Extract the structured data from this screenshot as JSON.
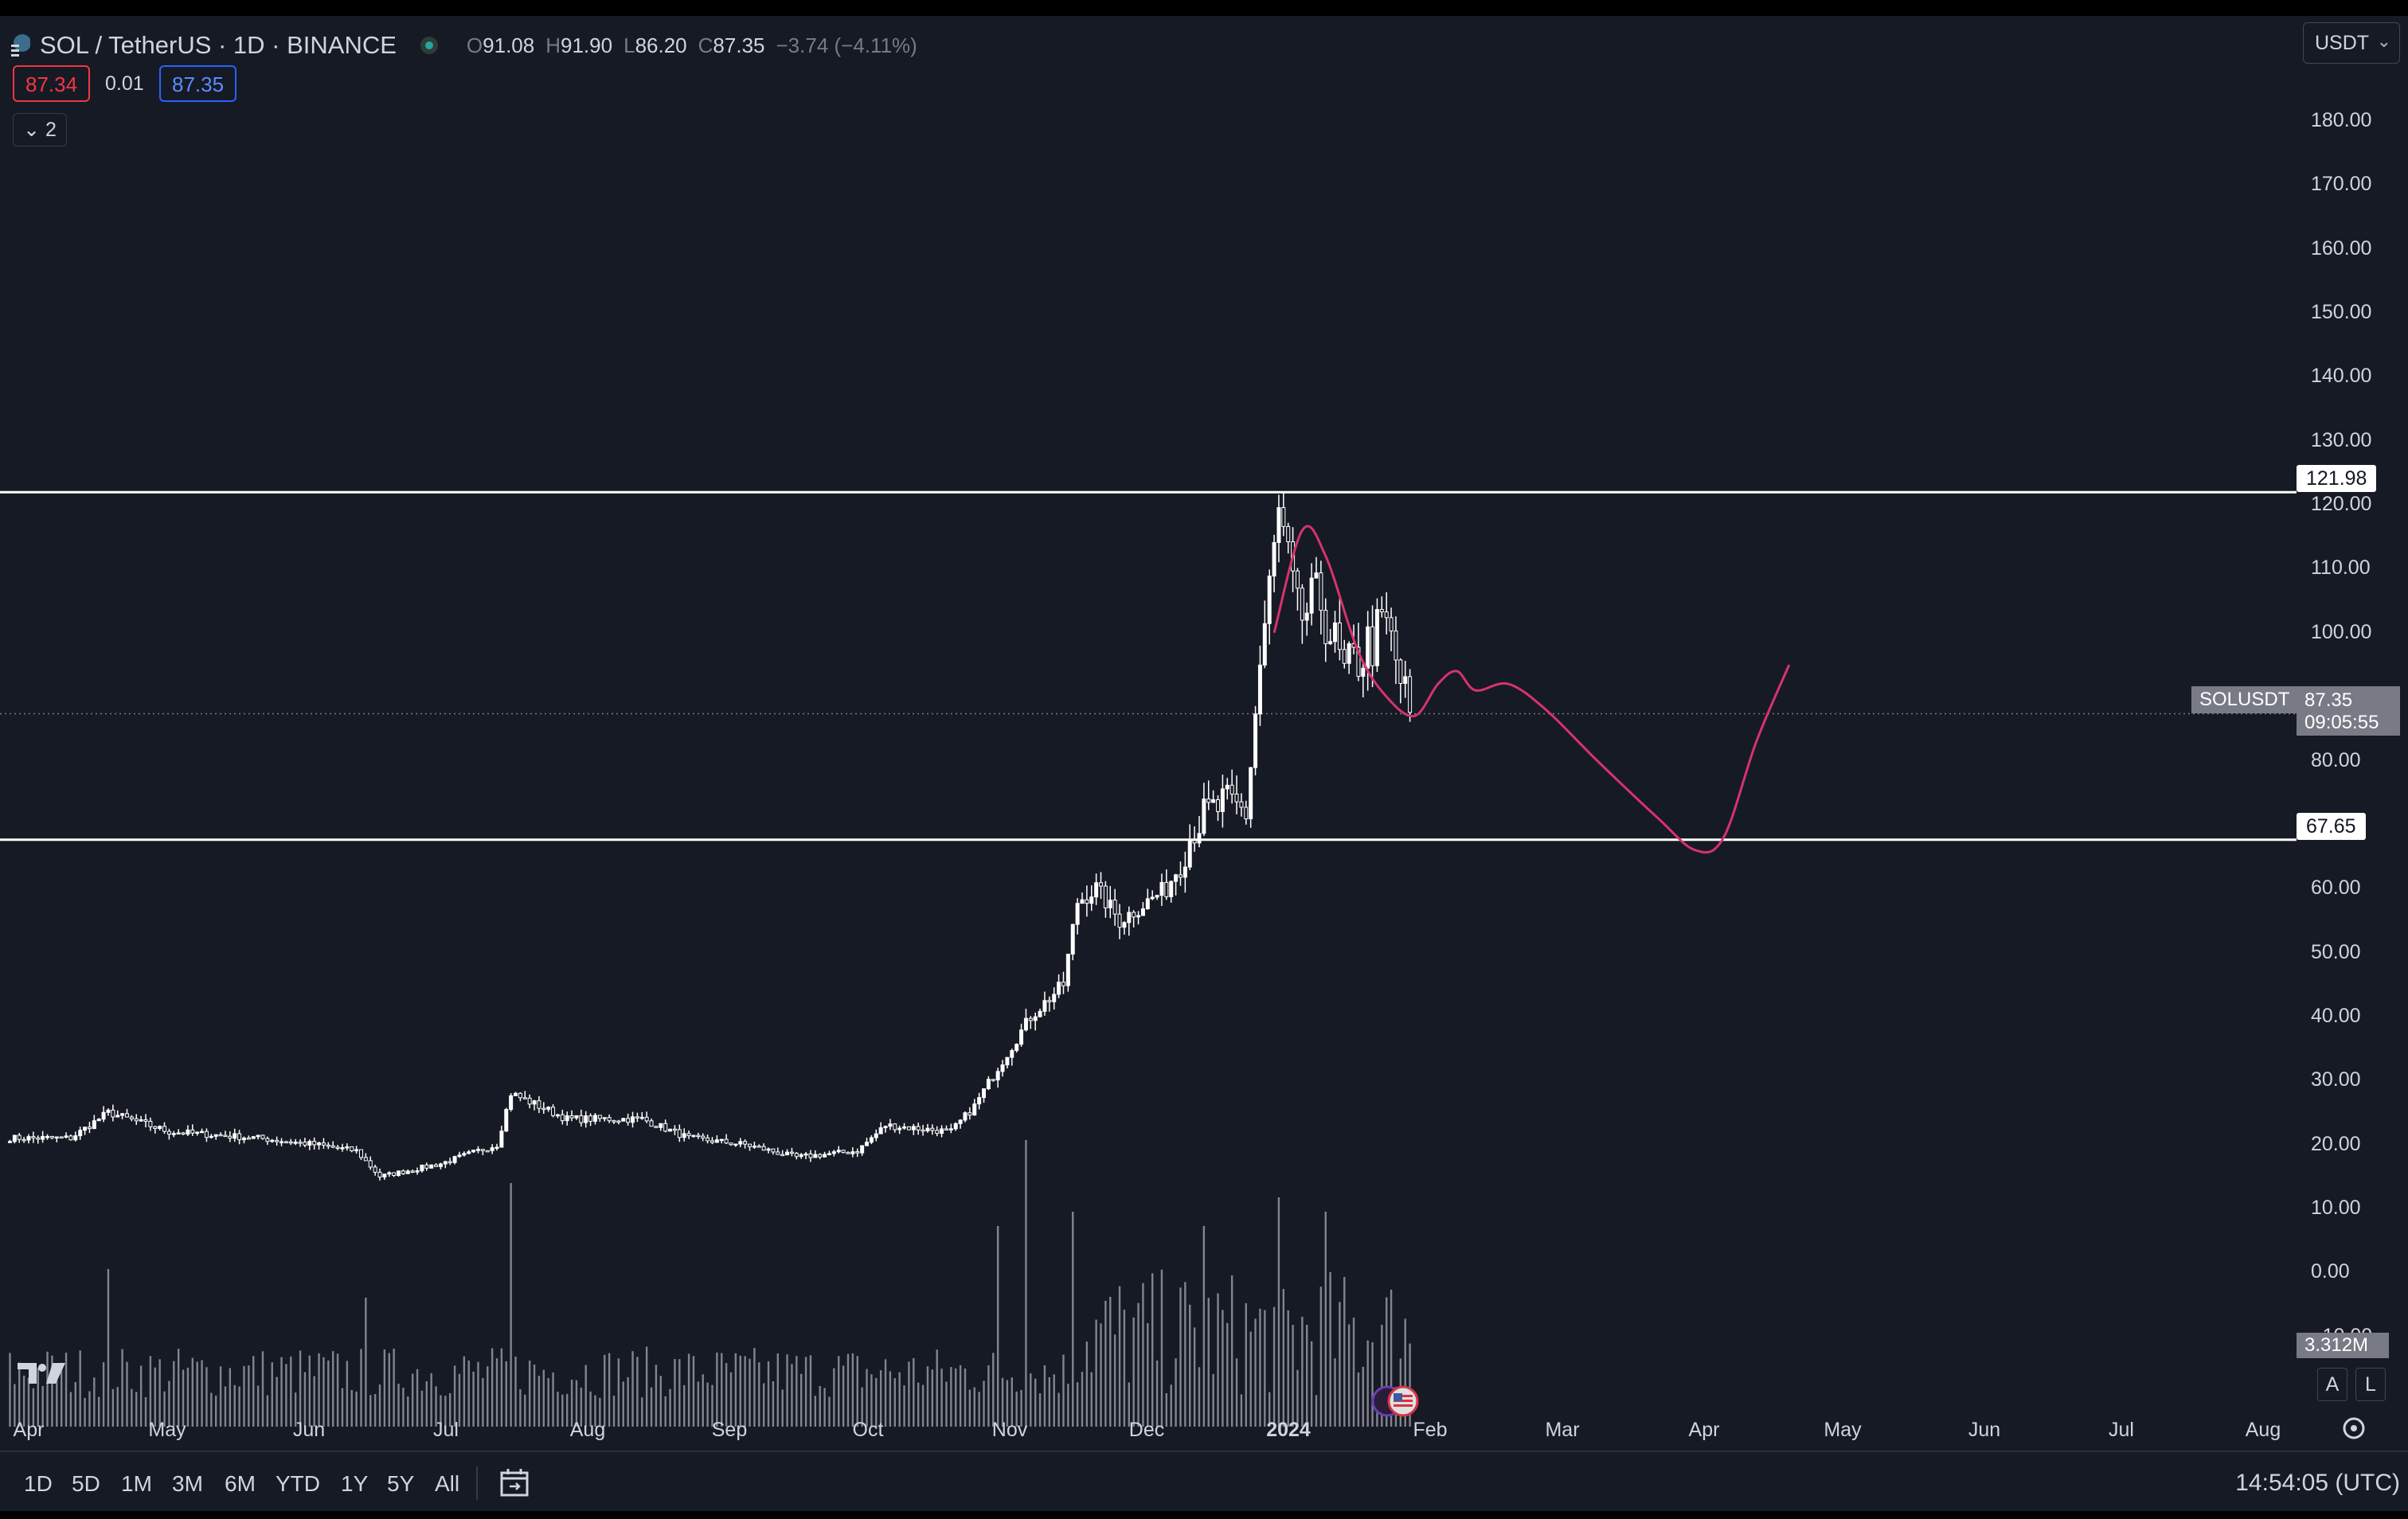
{
  "header": {
    "symbol_title": "SOL / TetherUS · 1D · BINANCE",
    "ohlc": [
      {
        "k": "O",
        "v": "91.08"
      },
      {
        "k": "H",
        "v": "91.90"
      },
      {
        "k": "L",
        "v": "86.20"
      },
      {
        "k": "C",
        "v": "87.35"
      }
    ],
    "change": "−3.74 (−4.11%)",
    "bid": "87.34",
    "spread": "0.01",
    "ask": "87.35",
    "indicators_toggle": "2",
    "currency": "USDT"
  },
  "price_axis": {
    "labels": [
      "180.00",
      "170.00",
      "160.00",
      "150.00",
      "140.00",
      "130.00",
      "120.00",
      "110.00",
      "100.00",
      "90.00",
      "80.00",
      "70.00",
      "60.00",
      "50.00",
      "40.00",
      "30.00",
      "20.00",
      "10.00",
      "0.00",
      "−10.00"
    ],
    "levels": [
      {
        "value": 121.98,
        "label": "121.98"
      },
      {
        "value": 67.65,
        "label": "67.65"
      }
    ],
    "symbol_tag": "SOLUSDT",
    "last_price": "87.35",
    "countdown": "09:05:55",
    "volume_tag": "3.312M",
    "auto_btn": "A",
    "log_btn": "L"
  },
  "time_axis": {
    "labels": [
      {
        "t": "Apr",
        "year": false
      },
      {
        "t": "May",
        "year": false
      },
      {
        "t": "Jun",
        "year": false
      },
      {
        "t": "Jul",
        "year": false
      },
      {
        "t": "Aug",
        "year": false
      },
      {
        "t": "Sep",
        "year": false
      },
      {
        "t": "Oct",
        "year": false
      },
      {
        "t": "Nov",
        "year": false
      },
      {
        "t": "Dec",
        "year": false
      },
      {
        "t": "2024",
        "year": true
      },
      {
        "t": "Feb",
        "year": false
      },
      {
        "t": "Mar",
        "year": false
      },
      {
        "t": "Apr",
        "year": false
      },
      {
        "t": "May",
        "year": false
      },
      {
        "t": "Jun",
        "year": false
      },
      {
        "t": "Jul",
        "year": false
      },
      {
        "t": "Aug",
        "year": false
      }
    ]
  },
  "bottom_bar": {
    "ranges": [
      "1D",
      "5D",
      "1M",
      "3M",
      "6M",
      "YTD",
      "1Y",
      "5Y",
      "All"
    ],
    "clock": "14:54:05 (UTC)"
  },
  "colors": {
    "background": "#161a25",
    "candle": "#ffffff",
    "volume": "#9598a1",
    "projection": "#d6336c",
    "levels": "#ffffff",
    "bid": "#f23645",
    "ask": "#2962ff"
  },
  "chart_data": {
    "type": "candlestick",
    "x_range": [
      "2023-03-28",
      "2024-08-31"
    ],
    "y_range": [
      -15,
      190
    ],
    "anchors": [
      {
        "date": "2023-03-28",
        "close": 21
      },
      {
        "date": "2023-04-10",
        "close": 21
      },
      {
        "date": "2023-04-18",
        "close": 25
      },
      {
        "date": "2023-05-01",
        "close": 22
      },
      {
        "date": "2023-05-20",
        "close": 21
      },
      {
        "date": "2023-06-01",
        "close": 20
      },
      {
        "date": "2023-06-10",
        "close": 19
      },
      {
        "date": "2023-06-15",
        "close": 15
      },
      {
        "date": "2023-06-28",
        "close": 17
      },
      {
        "date": "2023-07-10",
        "close": 20
      },
      {
        "date": "2023-07-13",
        "close": 28
      },
      {
        "date": "2023-07-25",
        "close": 24
      },
      {
        "date": "2023-08-10",
        "close": 24
      },
      {
        "date": "2023-08-20",
        "close": 21
      },
      {
        "date": "2023-09-01",
        "close": 20
      },
      {
        "date": "2023-09-12",
        "close": 18
      },
      {
        "date": "2023-09-25",
        "close": 19
      },
      {
        "date": "2023-10-01",
        "close": 23
      },
      {
        "date": "2023-10-15",
        "close": 22
      },
      {
        "date": "2023-10-20",
        "close": 26
      },
      {
        "date": "2023-10-25",
        "close": 32
      },
      {
        "date": "2023-11-01",
        "close": 40
      },
      {
        "date": "2023-11-08",
        "close": 45
      },
      {
        "date": "2023-11-11",
        "close": 58
      },
      {
        "date": "2023-11-15",
        "close": 60
      },
      {
        "date": "2023-11-20",
        "close": 55
      },
      {
        "date": "2023-11-30",
        "close": 60
      },
      {
        "date": "2023-12-06",
        "close": 70
      },
      {
        "date": "2023-12-12",
        "close": 73
      },
      {
        "date": "2023-12-17",
        "close": 72
      },
      {
        "date": "2023-12-20",
        "close": 95
      },
      {
        "date": "2023-12-24",
        "close": 118
      },
      {
        "date": "2023-12-28",
        "close": 102
      },
      {
        "date": "2024-01-02",
        "close": 105
      },
      {
        "date": "2024-01-07",
        "close": 93
      },
      {
        "date": "2024-01-12",
        "close": 98
      },
      {
        "date": "2024-01-16",
        "close": 101
      },
      {
        "date": "2024-01-21",
        "close": 87
      }
    ],
    "volume_spikes": [
      {
        "date": "2023-07-13",
        "vol": 0.85
      },
      {
        "date": "2023-10-31",
        "vol": 1.0
      },
      {
        "date": "2023-11-10",
        "vol": 0.75
      },
      {
        "date": "2023-12-08",
        "vol": 0.7
      },
      {
        "date": "2023-12-24",
        "vol": 0.8
      },
      {
        "date": "2024-01-03",
        "vol": 0.75
      },
      {
        "date": "2023-04-18",
        "vol": 0.55
      },
      {
        "date": "2023-06-12",
        "vol": 0.45
      },
      {
        "date": "2023-10-25",
        "vol": 0.7
      }
    ],
    "horizontal_levels": [
      121.98,
      67.65
    ],
    "projection": [
      {
        "date": "2023-12-23",
        "value": 100
      },
      {
        "date": "2023-12-29",
        "value": 116
      },
      {
        "date": "2024-01-03",
        "value": 112
      },
      {
        "date": "2024-01-10",
        "value": 97
      },
      {
        "date": "2024-01-16",
        "value": 90
      },
      {
        "date": "2024-01-22",
        "value": 87
      },
      {
        "date": "2024-01-27",
        "value": 92
      },
      {
        "date": "2024-01-31",
        "value": 94
      },
      {
        "date": "2024-02-04",
        "value": 91
      },
      {
        "date": "2024-02-11",
        "value": 92
      },
      {
        "date": "2024-02-19",
        "value": 88
      },
      {
        "date": "2024-03-01",
        "value": 80
      },
      {
        "date": "2024-03-14",
        "value": 71
      },
      {
        "date": "2024-03-22",
        "value": 66
      },
      {
        "date": "2024-03-28",
        "value": 68
      },
      {
        "date": "2024-04-04",
        "value": 83
      },
      {
        "date": "2024-04-11",
        "value": 95
      }
    ]
  }
}
